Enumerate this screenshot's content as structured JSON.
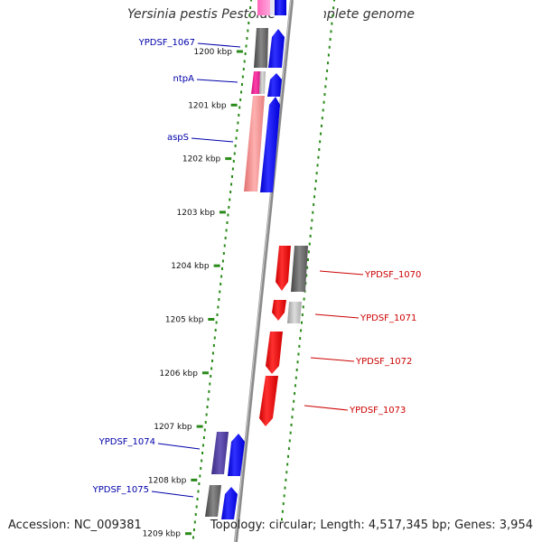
{
  "header": {
    "title": "Yersinia pestis Pestoides F, complete genome"
  },
  "footer": {
    "accession": "Accession: NC_009381",
    "summary": "Topology: circular; Length: 4,517,345 bp; Genes: 3,954"
  },
  "colors": {
    "forward_cds": "#0000ff",
    "reverse_cds": "#ff0000",
    "label_left": "#0000aa",
    "label_right": "#cc0000",
    "gc_dots": "#2a8a1a",
    "backbone": "#888888"
  },
  "axis": {
    "unit": "kbp",
    "ticks": [
      {
        "value": 1200,
        "label": "1200 kbp"
      },
      {
        "value": 1201,
        "label": "1201 kbp"
      },
      {
        "value": 1202,
        "label": "1202 kbp"
      },
      {
        "value": 1203,
        "label": "1203 kbp"
      },
      {
        "value": 1204,
        "label": "1204 kbp"
      },
      {
        "value": 1205,
        "label": "1205 kbp"
      },
      {
        "value": 1206,
        "label": "1206 kbp"
      },
      {
        "value": 1207,
        "label": "1207 kbp"
      },
      {
        "value": 1208,
        "label": "1208 kbp"
      },
      {
        "value": 1209,
        "label": "1209 kbp"
      }
    ]
  },
  "gene_labels": [
    {
      "name": "YPDSF_1067",
      "side": "left"
    },
    {
      "name": "ntpA",
      "side": "left"
    },
    {
      "name": "aspS",
      "side": "left"
    },
    {
      "name": "YPDSF_1070",
      "side": "right"
    },
    {
      "name": "YPDSF_1071",
      "side": "right"
    },
    {
      "name": "YPDSF_1072",
      "side": "right"
    },
    {
      "name": "YPDSF_1073",
      "side": "right"
    },
    {
      "name": "YPDSF_1074",
      "side": "left"
    },
    {
      "name": "YPDSF_1075",
      "side": "left"
    }
  ]
}
